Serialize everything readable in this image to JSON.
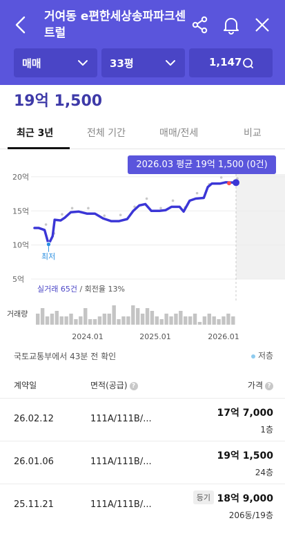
{
  "header": {
    "title": "거여동 e편한세상송파파크센트럴",
    "back_icon": "chevron-left-icon",
    "share_icon": "share-icon",
    "bell_icon": "bell-icon",
    "close_icon": "close-icon",
    "background": "#5a55dc"
  },
  "filters": {
    "deal_type": "매매",
    "size": "33평",
    "search_count": "1,147"
  },
  "price_summary": "19억 1,500",
  "tabs": [
    {
      "label": "최근 3년",
      "active": true
    },
    {
      "label": "전체 기간",
      "active": false
    },
    {
      "label": "매매/전세",
      "active": false
    },
    {
      "label": "비교",
      "active": false
    }
  ],
  "tooltip": "2026.03 평균 19억 1,500 (0건)",
  "low_label": "최저",
  "deal_count_label": "실거래 65건",
  "turnover_label": " / 회전율 13%",
  "volume_label": "거래량",
  "chart_data": {
    "type": "line",
    "y_ticks": [
      "20억",
      "15억",
      "10억",
      "5억"
    ],
    "y_values_billion_won": [
      20,
      15,
      10,
      5
    ],
    "x_ticks": [
      "2024.01",
      "2025.01",
      "2026.01"
    ],
    "ylim": [
      5,
      21
    ],
    "series": [
      {
        "points": [
          [
            0.0,
            12.5
          ],
          [
            0.02,
            12.5
          ],
          [
            0.05,
            12.2
          ],
          [
            0.07,
            10.1
          ],
          [
            0.09,
            11.3
          ],
          [
            0.1,
            13.7
          ],
          [
            0.13,
            13.6
          ],
          [
            0.15,
            14.0
          ],
          [
            0.18,
            14.8
          ],
          [
            0.22,
            14.9
          ],
          [
            0.26,
            14.6
          ],
          [
            0.3,
            14.6
          ],
          [
            0.34,
            13.9
          ],
          [
            0.38,
            13.5
          ],
          [
            0.42,
            13.5
          ],
          [
            0.46,
            13.8
          ],
          [
            0.49,
            15.0
          ],
          [
            0.52,
            15.8
          ],
          [
            0.55,
            16.0
          ],
          [
            0.58,
            15.0
          ],
          [
            0.62,
            15.0
          ],
          [
            0.65,
            15.1
          ],
          [
            0.68,
            15.6
          ],
          [
            0.72,
            15.6
          ],
          [
            0.74,
            14.9
          ],
          [
            0.77,
            16.5
          ],
          [
            0.8,
            16.8
          ],
          [
            0.84,
            16.9
          ],
          [
            0.86,
            18.5
          ],
          [
            0.88,
            19.0
          ],
          [
            0.92,
            19.0
          ],
          [
            0.95,
            19.2
          ],
          [
            1.0,
            19.15
          ]
        ]
      }
    ],
    "series_color": "#3b36d6",
    "low_marker_color": "#2b8fe0",
    "last_marker_color": "#3b36d6",
    "legend": [
      {
        "name": "저층",
        "color": "#8ecbef"
      }
    ],
    "volume_bars": [
      4,
      6,
      3,
      4,
      5,
      3,
      3,
      4,
      2,
      3,
      6,
      2,
      2,
      3,
      4,
      4,
      7,
      2,
      3,
      3,
      7,
      6,
      4,
      6,
      5,
      3,
      2,
      4,
      3,
      4,
      5,
      3,
      3,
      4,
      1,
      3,
      4,
      3,
      2,
      3,
      4,
      3
    ]
  },
  "source_text": "국토교통부에서 43분 전 확인",
  "legend_low": "저층",
  "table": {
    "headers": {
      "date": "계약일",
      "area": "면적(공급)",
      "price": "가격"
    },
    "rows": [
      {
        "date": "26.02.12",
        "area": "111A/111B/...",
        "price": "17억 7,000",
        "floor": "1층",
        "badge": ""
      },
      {
        "date": "26.01.06",
        "area": "111A/111B/...",
        "price": "19억 1,500",
        "floor": "24층",
        "badge": ""
      },
      {
        "date": "25.11.21",
        "area": "111A/111B/...",
        "price": "18억 9,000",
        "floor": "206동/19층",
        "badge": "등기"
      }
    ]
  }
}
